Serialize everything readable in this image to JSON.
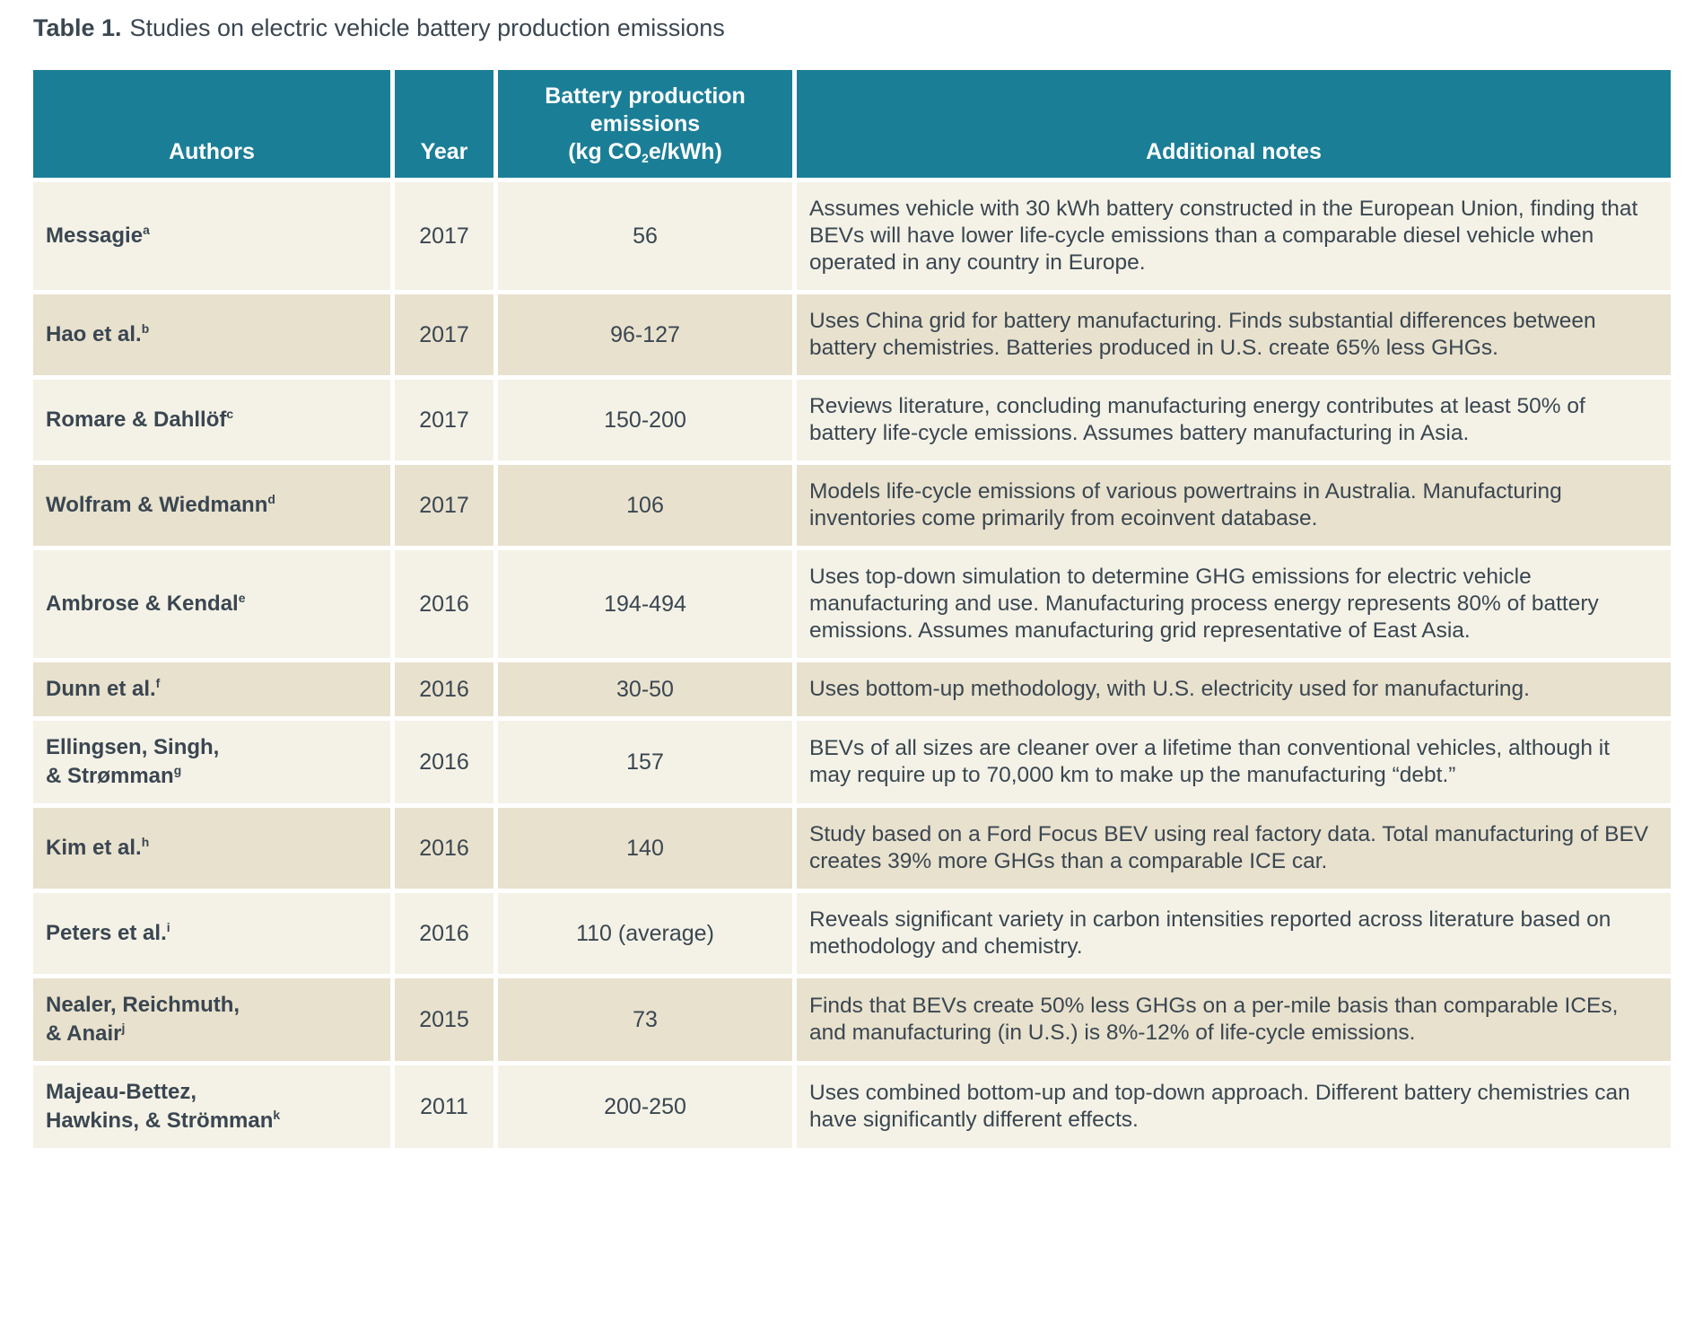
{
  "title": {
    "prefix": "Table 1.",
    "text": "Studies on electric vehicle battery production emissions"
  },
  "colors": {
    "header_background": "#1b7e97",
    "header_text": "#ffffff",
    "row_light": "#f4f2e6",
    "row_dark": "#e8e1cd",
    "body_text": "#3a4651"
  },
  "table": {
    "headers": {
      "authors": "Authors",
      "year": "Year",
      "emissions_line1": "Battery production",
      "emissions_line2": "emissions",
      "emissions_line3_pre": "(kg CO",
      "emissions_line3_sub": "2",
      "emissions_line3_post": "e/kWh)",
      "notes": "Additional notes"
    },
    "rows": [
      {
        "author": "Messagie",
        "sup": "a",
        "year": "2017",
        "emissions": "56",
        "notes": "Assumes vehicle with 30 kWh battery constructed in the European Union, finding that BEVs will have lower life-cycle emissions than a comparable diesel vehicle when operated in any country in Europe."
      },
      {
        "author": "Hao et al.",
        "sup": "b",
        "year": "2017",
        "emissions": "96-127",
        "notes": "Uses China grid for battery manufacturing. Finds substantial differences between battery chemistries. Batteries produced in U.S. create 65% less GHGs."
      },
      {
        "author": "Romare & Dahllöf",
        "sup": "c",
        "year": "2017",
        "emissions": "150-200",
        "notes": "Reviews literature, concluding manufacturing energy contributes at least 50% of battery life-cycle emissions. Assumes battery manufacturing in Asia."
      },
      {
        "author": "Wolfram & Wiedmann",
        "sup": "d",
        "year": "2017",
        "emissions": "106",
        "notes": "Models life-cycle emissions of various powertrains in Australia. Manufacturing inventories come primarily from ecoinvent database."
      },
      {
        "author": "Ambrose & Kendal",
        "sup": "e",
        "year": "2016",
        "emissions": "194-494",
        "notes": "Uses top-down simulation to determine GHG emissions for electric vehicle manufacturing and use. Manufacturing process energy represents 80% of battery emissions. Assumes manufacturing grid representative of East Asia."
      },
      {
        "author": "Dunn et al.",
        "sup": "f",
        "year": "2016",
        "emissions": "30-50",
        "notes": "Uses bottom-up methodology, with U.S. electricity used for manufacturing."
      },
      {
        "author": "Ellingsen, Singh,\n& Strømman",
        "sup": "g",
        "year": "2016",
        "emissions": "157",
        "notes": "BEVs of all sizes are cleaner over a lifetime than conventional vehicles, although it may require up to 70,000 km to make up the manufacturing “debt.”"
      },
      {
        "author": "Kim et al.",
        "sup": "h",
        "year": "2016",
        "emissions": "140",
        "notes": "Study based on a Ford Focus BEV using real factory data. Total manufacturing of BEV creates 39% more GHGs than a comparable ICE car."
      },
      {
        "author": "Peters et al.",
        "sup": "i",
        "year": "2016",
        "emissions": "110 (average)",
        "notes": "Reveals significant variety in carbon intensities reported across literature based on methodology and chemistry."
      },
      {
        "author": "Nealer, Reichmuth,\n& Anair",
        "sup": "j",
        "year": "2015",
        "emissions": "73",
        "notes": "Finds that BEVs create 50% less GHGs on a per-mile basis than comparable ICEs, and manufacturing (in U.S.) is 8%-12% of life-cycle emissions."
      },
      {
        "author": "Majeau-Bettez,\nHawkins, & Strömman",
        "sup": "k",
        "year": "2011",
        "emissions": "200-250",
        "notes": "Uses combined bottom-up and top-down approach. Different battery chemistries can have significantly different effects."
      }
    ]
  }
}
